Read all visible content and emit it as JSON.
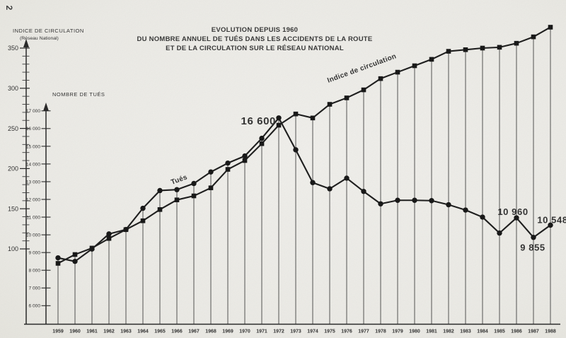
{
  "page": {
    "corner_page_number": "2"
  },
  "title": {
    "line1": "EVOLUTION DEPUIS 1960",
    "line2": "DU NOMBRE ANNUEL DE TUÉS DANS LES ACCIDENTS DE LA ROUTE",
    "line3": "ET DE LA CIRCULATION SUR LE RÉSEAU NATIONAL"
  },
  "axes": {
    "indice": {
      "title": "INDICE DE CIRCULATION",
      "subtitle": "(Réseau National)",
      "tick_values": [
        100,
        150,
        200,
        250,
        300,
        350
      ],
      "tick_labels": [
        "100",
        "150",
        "200",
        "250",
        "300",
        "350"
      ],
      "minor_step": 10
    },
    "tues": {
      "title": "NOMBRE DE TUÉS",
      "tick_values": [
        6000,
        7000,
        8000,
        9000,
        10000,
        11000,
        12000,
        13000,
        14000,
        15000,
        16000,
        17000
      ],
      "tick_labels": [
        "6 000",
        "7 000",
        "8 000",
        "9 000",
        "10 000",
        "11 000",
        "12 000",
        "13 000",
        "14 000",
        "15 000",
        "16 000",
        "17 000"
      ]
    }
  },
  "chart_data": {
    "type": "line",
    "title": "EVOLUTION DEPUIS 1960 DU NOMBRE ANNUEL DE TUÉS DANS LES ACCIDENTS DE LA ROUTE ET DE LA CIRCULATION SUR LE RÉSEAU NATIONAL",
    "x": [
      1959,
      1960,
      1961,
      1962,
      1963,
      1964,
      1965,
      1966,
      1967,
      1968,
      1969,
      1970,
      1971,
      1972,
      1973,
      1974,
      1975,
      1976,
      1977,
      1978,
      1979,
      1980,
      1981,
      1982,
      1983,
      1984,
      1985,
      1986,
      1987,
      1988
    ],
    "series": [
      {
        "name": "Tués",
        "marker": "circle",
        "axis": "NOMBRE DE TUÉS",
        "values": [
          8700,
          8500,
          9200,
          10050,
          10300,
          11500,
          12500,
          12550,
          12900,
          13550,
          14050,
          14450,
          15450,
          16600,
          14800,
          12950,
          12600,
          13200,
          12450,
          11750,
          11950,
          11950,
          11930,
          11700,
          11400,
          11000,
          10100,
          10960,
          9855,
          10548
        ]
      },
      {
        "name": "Indice de circulation",
        "marker": "square",
        "axis": "INDICE DE CIRCULATION (Réseau National)",
        "values": [
          82,
          93,
          101,
          113,
          124,
          135,
          149,
          161,
          166,
          176,
          199,
          210,
          231,
          254,
          268,
          263,
          280,
          288,
          298,
          312,
          320,
          328,
          336,
          346,
          348,
          350,
          351,
          356,
          364,
          376
        ]
      }
    ],
    "annotations": [
      {
        "text": "16 600",
        "year": 1972,
        "series": "Tués"
      },
      {
        "text": "10 960",
        "year": 1986,
        "series": "Tués"
      },
      {
        "text": "9 855",
        "year": 1987,
        "series": "Tués"
      },
      {
        "text": "10 548",
        "year": 1988,
        "series": "Tués"
      }
    ],
    "ylim_tues": [
      6000,
      17600
    ],
    "ylim_indice": [
      80,
      380
    ],
    "legend_position": "inline-labels-on-lines",
    "grid": "vertical-dropline-at-each-year"
  },
  "colors": {
    "ink": "#242424",
    "paper": "#f1f0ec"
  }
}
